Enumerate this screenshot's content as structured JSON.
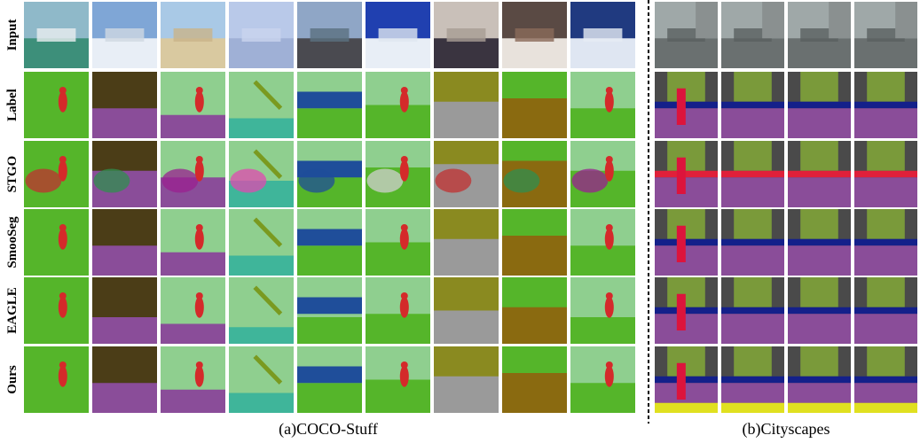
{
  "row_labels": [
    "Input",
    "Label",
    "STGO",
    "SmooSeg",
    "EAGLE",
    "Ours"
  ],
  "captions": {
    "coco": "(a)COCO-Stuff",
    "cityscapes": "(b)Cityscapes"
  }
}
